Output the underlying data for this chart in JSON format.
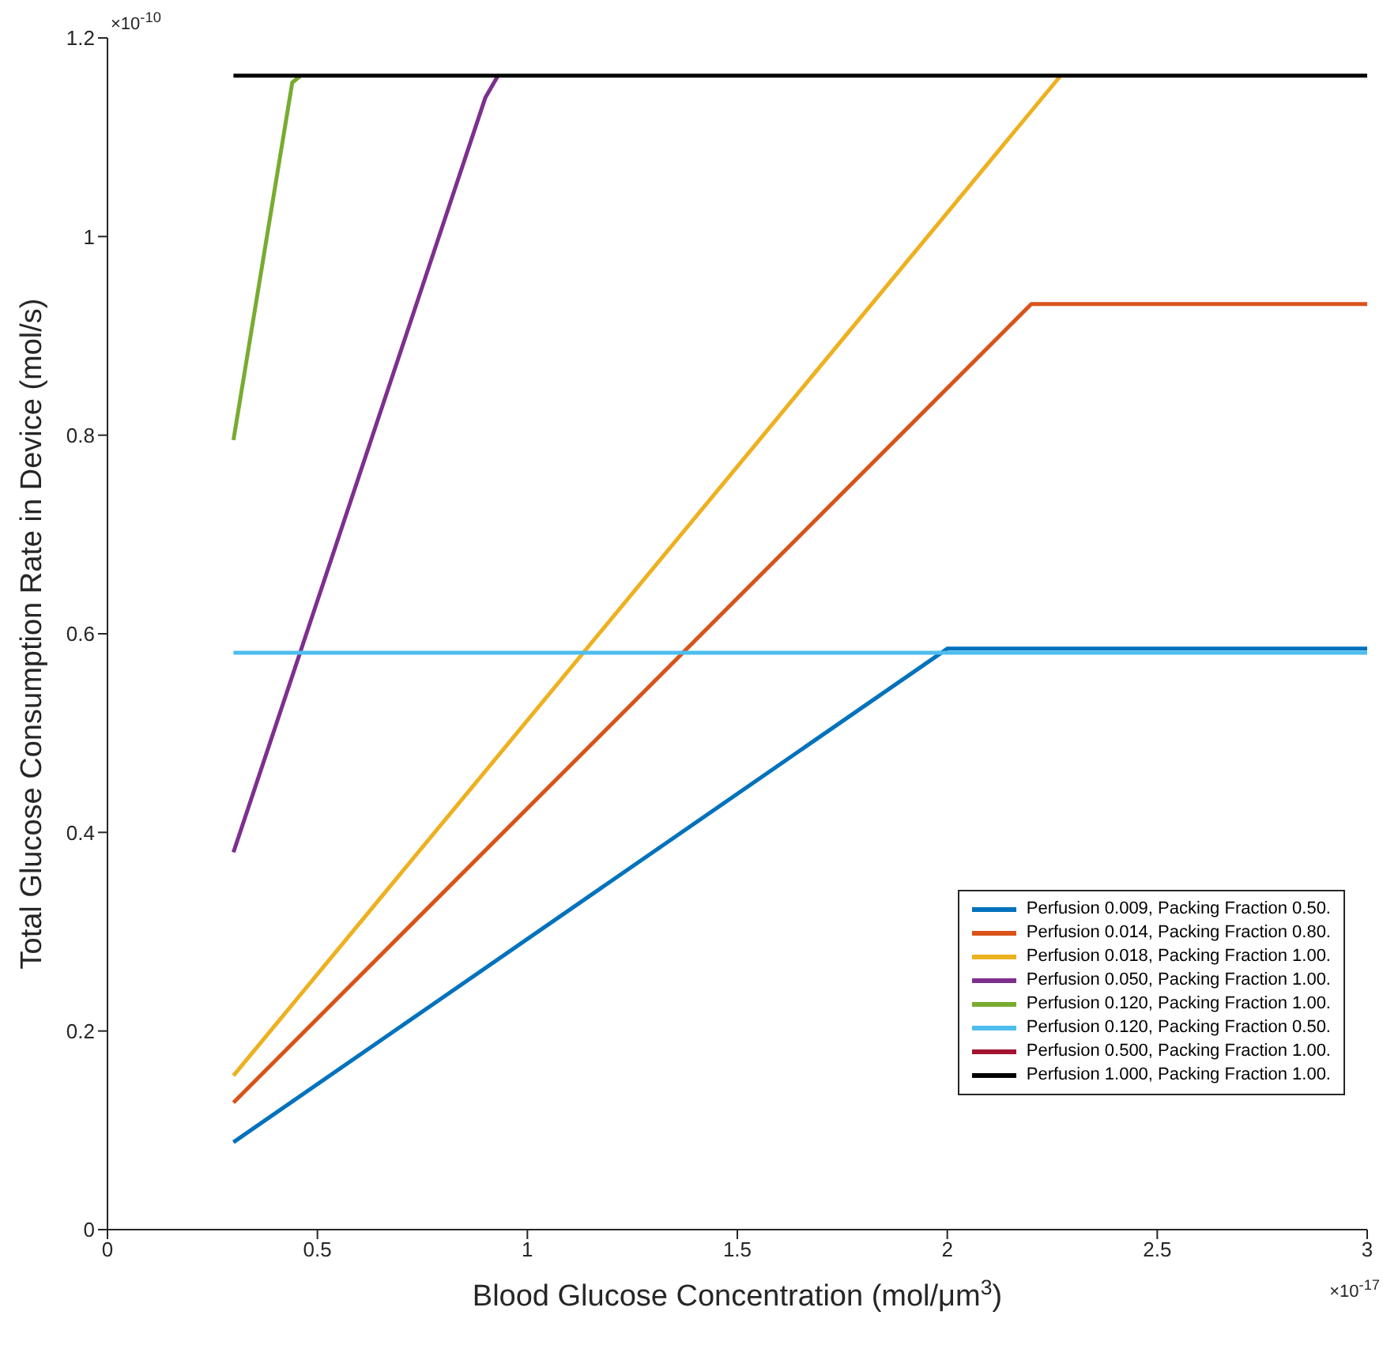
{
  "chart_data": {
    "type": "line",
    "xlabel": "Blood Glucose Concentration (mol/μm$^{3}$)",
    "ylabel": "Total Glucose Consumption Rate in Device (mol/s)",
    "xlim": [
      0,
      3
    ],
    "xticks": [
      0,
      0.5,
      1,
      1.5,
      2,
      2.5,
      3
    ],
    "ylim": [
      0,
      1.2
    ],
    "yticks": [
      0,
      0.2,
      0.4,
      0.6,
      0.8,
      1,
      1.2
    ],
    "grid": false,
    "legend": "bottom right",
    "marker": "none",
    "line_style": "solid",
    "annotations": [
      "×10$^{-10}$",
      "×10$^{-17}$"
    ],
    "series": [
      {
        "name": "Perfusion 0.009, Packing Fraction 0.50.",
        "color": "#0072bd",
        "x": [
          0.3,
          2.0,
          3
        ],
        "values": [
          0.088,
          0.585,
          0.585
        ]
      },
      {
        "name": "Perfusion 0.014, Packing Fraction 0.80.",
        "color": "#d95319",
        "x": [
          0.3,
          2.2,
          3
        ],
        "values": [
          0.128,
          0.932,
          0.932
        ]
      },
      {
        "name": "Perfusion 0.018, Packing Fraction 1.00.",
        "color": "#edb120",
        "x": [
          0.3,
          2.27
        ],
        "values": [
          0.155,
          1.162
        ]
      },
      {
        "name": "Perfusion 0.050, Packing Fraction 1.00.",
        "color": "#7e2f8e",
        "x": [
          0.3,
          0.9,
          0.93
        ],
        "values": [
          0.38,
          1.14,
          1.162
        ]
      },
      {
        "name": "Perfusion 0.120, Packing Fraction 1.00.",
        "color": "#77ac30",
        "x": [
          0.3,
          0.44,
          0.46
        ],
        "values": [
          0.795,
          1.155,
          1.162
        ]
      },
      {
        "name": "Perfusion 0.120, Packing Fraction 0.50.",
        "color": "#4dbeee",
        "x": [
          0.3,
          3
        ],
        "values": [
          0.581,
          0.581
        ]
      },
      {
        "name": "Perfusion 0.500, Packing Fraction 1.00.",
        "color": "#a2142f"
      },
      {
        "name": "Perfusion 1.000, Packing Fraction 1.00.",
        "color": "#000000",
        "x": [
          0.3,
          3
        ],
        "values": [
          1.162,
          1.162
        ]
      }
    ]
  }
}
